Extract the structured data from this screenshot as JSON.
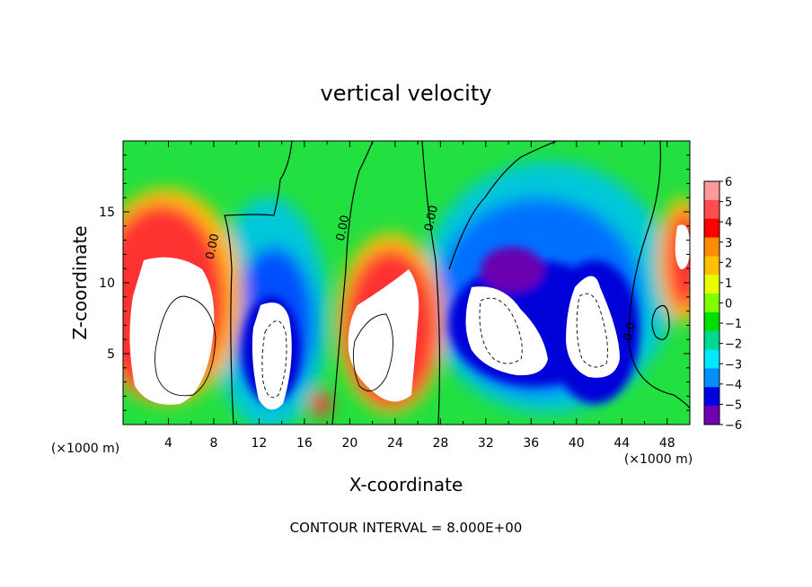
{
  "chart_data": {
    "type": "heatmap",
    "title": "vertical velocity",
    "xlabel": "X-coordinate",
    "ylabel": "Z-coordinate",
    "x_unit_left": "(×1000 m)",
    "x_unit_right": "(×1000 m)",
    "xlim": [
      0,
      50
    ],
    "ylim": [
      0,
      20
    ],
    "x_ticks": [
      4,
      8,
      12,
      16,
      20,
      24,
      28,
      32,
      36,
      40,
      44,
      48
    ],
    "y_ticks": [
      5,
      10,
      15
    ],
    "colorbar": {
      "levels": [
        6,
        5,
        4,
        3,
        2,
        1,
        0,
        -1,
        -2,
        -3,
        -4,
        -5,
        -6
      ],
      "colors": [
        "#ff9a9a",
        "#ff4c4c",
        "#ff0000",
        "#ff8c00",
        "#ffc000",
        "#e8ff00",
        "#80ff00",
        "#00e000",
        "#00d890",
        "#00e8ff",
        "#0090ff",
        "#0000e0",
        "#7000b0"
      ]
    },
    "contour_labels": [
      {
        "text": "0.00",
        "x": 8.2,
        "z": 12.5
      },
      {
        "text": "0.00",
        "x": 19.7,
        "z": 13.8
      },
      {
        "text": "0.00",
        "x": 27.5,
        "z": 14.5
      },
      {
        "text": "0.0",
        "x": 45.0,
        "z": 6.5
      }
    ],
    "footer": "CONTOUR INTERVAL = 8.000E+00"
  }
}
